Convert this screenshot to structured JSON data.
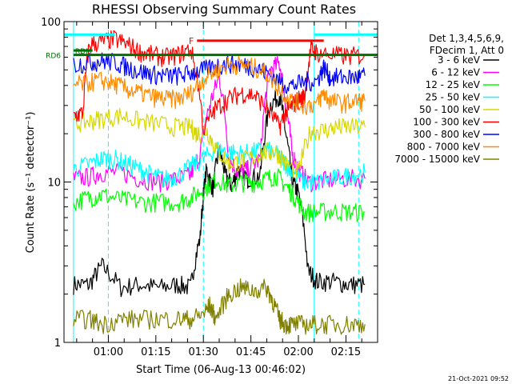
{
  "chart_data": {
    "type": "line",
    "title": "RHESSI Observing Summary Count Rates",
    "xlabel": "Start Time (06-Aug-13 00:46:02)",
    "ylabel": "Count Rate (s⁻¹ detector⁻¹)",
    "yscale": "log",
    "ylim": [
      1,
      100
    ],
    "xlim_minutes": [
      0,
      99
    ],
    "x_ticks": [
      {
        "label": "01:00",
        "minute": 14
      },
      {
        "label": "01:15",
        "minute": 29
      },
      {
        "label": "01:30",
        "minute": 44
      },
      {
        "label": "01:45",
        "minute": 59
      },
      {
        "label": "02:00",
        "minute": 74
      },
      {
        "label": "02:15",
        "minute": 89
      }
    ],
    "y_ticks": [
      {
        "label": "1",
        "value": 1
      },
      {
        "label": "10",
        "value": 10
      },
      {
        "label": "100",
        "value": 100
      }
    ],
    "legend_header": [
      "Det 1,3,4,5,6,9,",
      "FDecim 1, Att 0"
    ],
    "series": [
      {
        "name": "3 - 6 keV",
        "color": "#000000",
        "x": [
          3,
          8,
          12,
          18,
          24,
          30,
          36,
          40,
          43,
          45,
          47,
          49,
          51,
          53,
          55,
          58,
          62,
          65,
          68,
          70,
          72,
          74,
          77,
          80,
          85,
          90,
          95
        ],
        "y": [
          2.3,
          2.3,
          3.0,
          2.2,
          2.3,
          2.2,
          2.3,
          2.2,
          4.5,
          12.0,
          9.0,
          16.0,
          11.0,
          9.5,
          12.0,
          10.5,
          11.0,
          30.0,
          35.0,
          20.0,
          10.0,
          8.5,
          2.8,
          2.4,
          2.4,
          2.3,
          2.3
        ]
      },
      {
        "name": "6 - 12 keV",
        "color": "#ff00ff",
        "x": [
          3,
          8,
          12,
          18,
          24,
          30,
          36,
          40,
          43,
          46,
          49,
          52,
          55,
          58,
          62,
          65,
          68,
          70,
          72,
          74,
          77,
          82,
          88,
          95
        ],
        "y": [
          10.5,
          10.8,
          11.5,
          11.5,
          10.5,
          10.0,
          10.5,
          11.0,
          15.0,
          30.0,
          45.0,
          14.0,
          11.5,
          12.0,
          14.0,
          50.0,
          55.0,
          30.0,
          15.0,
          12.0,
          10.0,
          10.2,
          10.5,
          10.5
        ]
      },
      {
        "name": "12 - 25 keV",
        "color": "#00ff00",
        "x": [
          3,
          8,
          12,
          18,
          24,
          30,
          36,
          40,
          44,
          48,
          52,
          56,
          60,
          64,
          67,
          70,
          73,
          76,
          80,
          85,
          90,
          95
        ],
        "y": [
          7.5,
          8.0,
          8.3,
          7.8,
          7.5,
          7.5,
          7.5,
          8.0,
          9.0,
          10.5,
          9.5,
          10.0,
          10.0,
          10.5,
          11.0,
          9.5,
          8.0,
          6.5,
          6.5,
          6.6,
          6.5,
          6.5
        ]
      },
      {
        "name": "25 - 50 keV",
        "color": "#00ffff",
        "x": [
          3,
          8,
          12,
          16,
          20,
          24,
          28,
          32,
          36,
          40,
          44,
          48,
          52,
          56,
          60,
          64,
          68,
          70,
          72,
          76,
          80,
          85,
          90,
          95
        ],
        "y": [
          12.0,
          13.0,
          14.0,
          14.0,
          13.0,
          12.0,
          11.0,
          10.5,
          11.0,
          12.5,
          14.0,
          16.0,
          15.5,
          15.0,
          15.5,
          16.0,
          14.5,
          13.0,
          11.5,
          10.0,
          10.0,
          10.5,
          11.0,
          11.5
        ]
      },
      {
        "name": "50 - 100 keV",
        "color": "#d7d700",
        "x": [
          3,
          8,
          12,
          18,
          24,
          30,
          36,
          40,
          42,
          45,
          48,
          52,
          56,
          60,
          64,
          67,
          70,
          74,
          78,
          82,
          86,
          90,
          95
        ],
        "y": [
          23.0,
          24.0,
          25.0,
          26.0,
          24.0,
          23.0,
          22.0,
          22.0,
          20.0,
          21.0,
          16.0,
          13.0,
          13.5,
          14.5,
          15.5,
          15.5,
          13.0,
          11.5,
          21.0,
          21.0,
          22.0,
          22.0,
          22.0
        ]
      },
      {
        "name": "100 - 300 keV",
        "color": "#ff0000",
        "x": [
          3,
          6,
          8,
          12,
          16,
          20,
          24,
          28,
          32,
          36,
          40,
          44,
          48,
          52,
          56,
          60,
          64,
          68,
          70,
          72,
          74,
          76,
          78,
          80,
          85,
          90,
          95
        ],
        "y": [
          26.0,
          27.0,
          72.0,
          75.0,
          78.0,
          72.0,
          65.0,
          62.0,
          60.0,
          62.0,
          68.0,
          21.0,
          29.0,
          33.0,
          36.0,
          35.0,
          29.0,
          22.0,
          27.0,
          30.0,
          33.0,
          34.0,
          68.0,
          64.0,
          62.0,
          61.0,
          62.0
        ]
      },
      {
        "name": "300 - 800 keV",
        "color": "#0000ff",
        "x": [
          3,
          8,
          12,
          16,
          20,
          24,
          28,
          32,
          36,
          40,
          44,
          48,
          52,
          56,
          60,
          64,
          68,
          72,
          76,
          80,
          82,
          84,
          88,
          92,
          95
        ],
        "y": [
          54.0,
          56.0,
          57.0,
          56.0,
          52.0,
          49.0,
          47.0,
          46.0,
          46.0,
          48.0,
          50.0,
          53.0,
          55.0,
          54.0,
          52.0,
          48.0,
          42.0,
          40.0,
          42.0,
          43.0,
          52.0,
          45.0,
          45.0,
          45.0,
          46.0
        ]
      },
      {
        "name": "800 - 7000 keV",
        "color": "#ff8c00",
        "x": [
          3,
          8,
          12,
          16,
          20,
          24,
          28,
          32,
          36,
          40,
          44,
          48,
          52,
          56,
          60,
          64,
          68,
          72,
          76,
          80,
          82,
          84,
          88,
          92,
          95
        ],
        "y": [
          40.0,
          42.0,
          43.0,
          41.0,
          38.0,
          36.0,
          34.0,
          33.0,
          33.0,
          36.0,
          44.0,
          50.0,
          54.0,
          54.0,
          52.0,
          48.0,
          38.0,
          32.0,
          30.0,
          31.0,
          36.0,
          32.0,
          31.0,
          32.0,
          32.0
        ]
      },
      {
        "name": "7000 - 15000 keV",
        "color": "#808000",
        "x": [
          3,
          8,
          12,
          18,
          24,
          30,
          36,
          40,
          44,
          46,
          48,
          52,
          56,
          60,
          64,
          66,
          68,
          70,
          72,
          76,
          80,
          85,
          90,
          95
        ],
        "y": [
          1.4,
          1.4,
          1.3,
          1.4,
          1.4,
          1.4,
          1.4,
          1.4,
          1.5,
          1.7,
          1.4,
          2.0,
          2.2,
          2.1,
          2.2,
          1.8,
          1.4,
          1.3,
          1.3,
          1.3,
          1.3,
          1.3,
          1.3,
          1.3
        ]
      }
    ],
    "annotations": [
      {
        "label": "F",
        "color": "#ff0000",
        "start_minute": 42,
        "end_minute": 82,
        "level": 76
      },
      {
        "label": "RD6",
        "color": "#007000",
        "start_minute": 3,
        "end_minute": 99,
        "level": 62
      },
      {
        "label": "RDM",
        "color": "#007000",
        "start_minute": 3,
        "end_minute": 9,
        "level": 66
      }
    ],
    "attenuator_bars": [
      {
        "color": "#00ffff",
        "start_minute": 0,
        "end_minute": 16,
        "level": 83
      },
      {
        "color": "#00ffff",
        "start_minute": 79,
        "end_minute": 99,
        "level": 83
      }
    ],
    "cyan_vlines": [
      {
        "minute": 3,
        "style": "solid"
      },
      {
        "minute": 14,
        "style": "dashed"
      },
      {
        "minute": 44,
        "style": "dashed"
      },
      {
        "minute": 79,
        "style": "solid"
      },
      {
        "minute": 93,
        "style": "dashed"
      }
    ],
    "footer": "21-Oct-2021 09:52"
  }
}
